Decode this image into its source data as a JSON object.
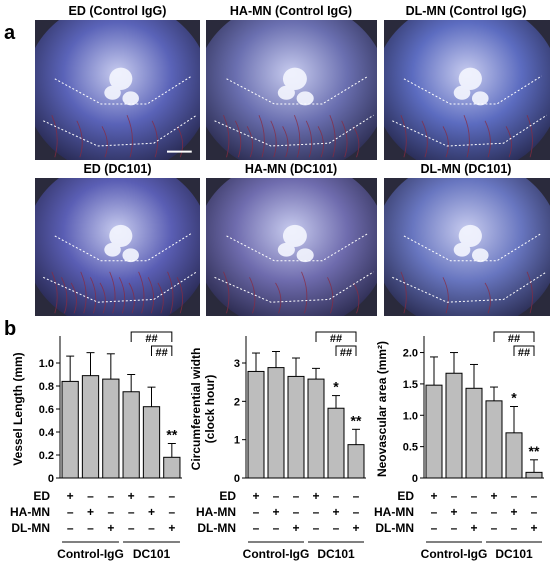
{
  "panel_labels": [
    "a",
    "b"
  ],
  "photos": [
    {
      "title": "ED (Control IgG)",
      "tone": "#5a63b8",
      "scale_bar": true
    },
    {
      "title": "HA-MN (Control IgG)",
      "tone": "#6a6fb0",
      "scale_bar": false
    },
    {
      "title": "DL-MN (Control IgG)",
      "tone": "#5c6cc0",
      "scale_bar": false
    },
    {
      "title": "ED (DC101)",
      "tone": "#5a5eb4",
      "scale_bar": false
    },
    {
      "title": "HA-MN (DC101)",
      "tone": "#6f6cae",
      "scale_bar": false
    },
    {
      "title": "DL-MN (DC101)",
      "tone": "#6876c0",
      "scale_bar": false
    }
  ],
  "condition_rows": [
    {
      "label": "ED",
      "signs": [
        "+",
        "–",
        "–",
        "+",
        "–",
        "–"
      ]
    },
    {
      "label": "HA-MN",
      "signs": [
        "–",
        "+",
        "–",
        "–",
        "+",
        "–"
      ]
    },
    {
      "label": "DL-MN",
      "signs": [
        "–",
        "–",
        "+",
        "–",
        "–",
        "+"
      ]
    }
  ],
  "groups": [
    "Control-IgG",
    "DC101"
  ],
  "chart_data": [
    {
      "type": "bar",
      "ylabel": "Vessel Length (mm)",
      "ylim": [
        0,
        1.2
      ],
      "yticks": [
        "0",
        "0.2",
        "0.4",
        "0.6",
        "0.8",
        "1.0"
      ],
      "ytick_values": [
        0,
        0.2,
        0.4,
        0.6,
        0.8,
        1.0
      ],
      "values": [
        0.84,
        0.89,
        0.86,
        0.75,
        0.62,
        0.18
      ],
      "errors": [
        0.22,
        0.2,
        0.22,
        0.15,
        0.17,
        0.12
      ],
      "stars": {
        "4": "",
        "5": "**"
      },
      "hash": "##",
      "bar_color": "#bdbdbd"
    },
    {
      "type": "bar",
      "ylabel": "Circumferential width\n(clock hour)",
      "ylim": [
        0,
        3.6
      ],
      "yticks": [
        "0",
        "1",
        "2",
        "3"
      ],
      "ytick_values": [
        0,
        1,
        2,
        3
      ],
      "values": [
        2.78,
        2.88,
        2.65,
        2.58,
        1.82,
        0.87
      ],
      "errors": [
        0.48,
        0.42,
        0.48,
        0.28,
        0.33,
        0.4
      ],
      "stars": {
        "4": "*",
        "5": "**"
      },
      "hash": "##",
      "bar_color": "#bdbdbd"
    },
    {
      "type": "bar",
      "ylabel": "Neovascular area (mm²)",
      "ylim": [
        0,
        2.2
      ],
      "yticks": [
        "0",
        "0.5",
        "1.0",
        "1.5",
        "2.0"
      ],
      "ytick_values": [
        0,
        0.5,
        1.0,
        1.5,
        2.0
      ],
      "values": [
        1.48,
        1.67,
        1.43,
        1.23,
        0.72,
        0.09
      ],
      "errors": [
        0.45,
        0.33,
        0.38,
        0.22,
        0.42,
        0.2
      ],
      "stars": {
        "4": "*",
        "5": "**"
      },
      "hash": "##",
      "bar_color": "#bdbdbd"
    }
  ]
}
